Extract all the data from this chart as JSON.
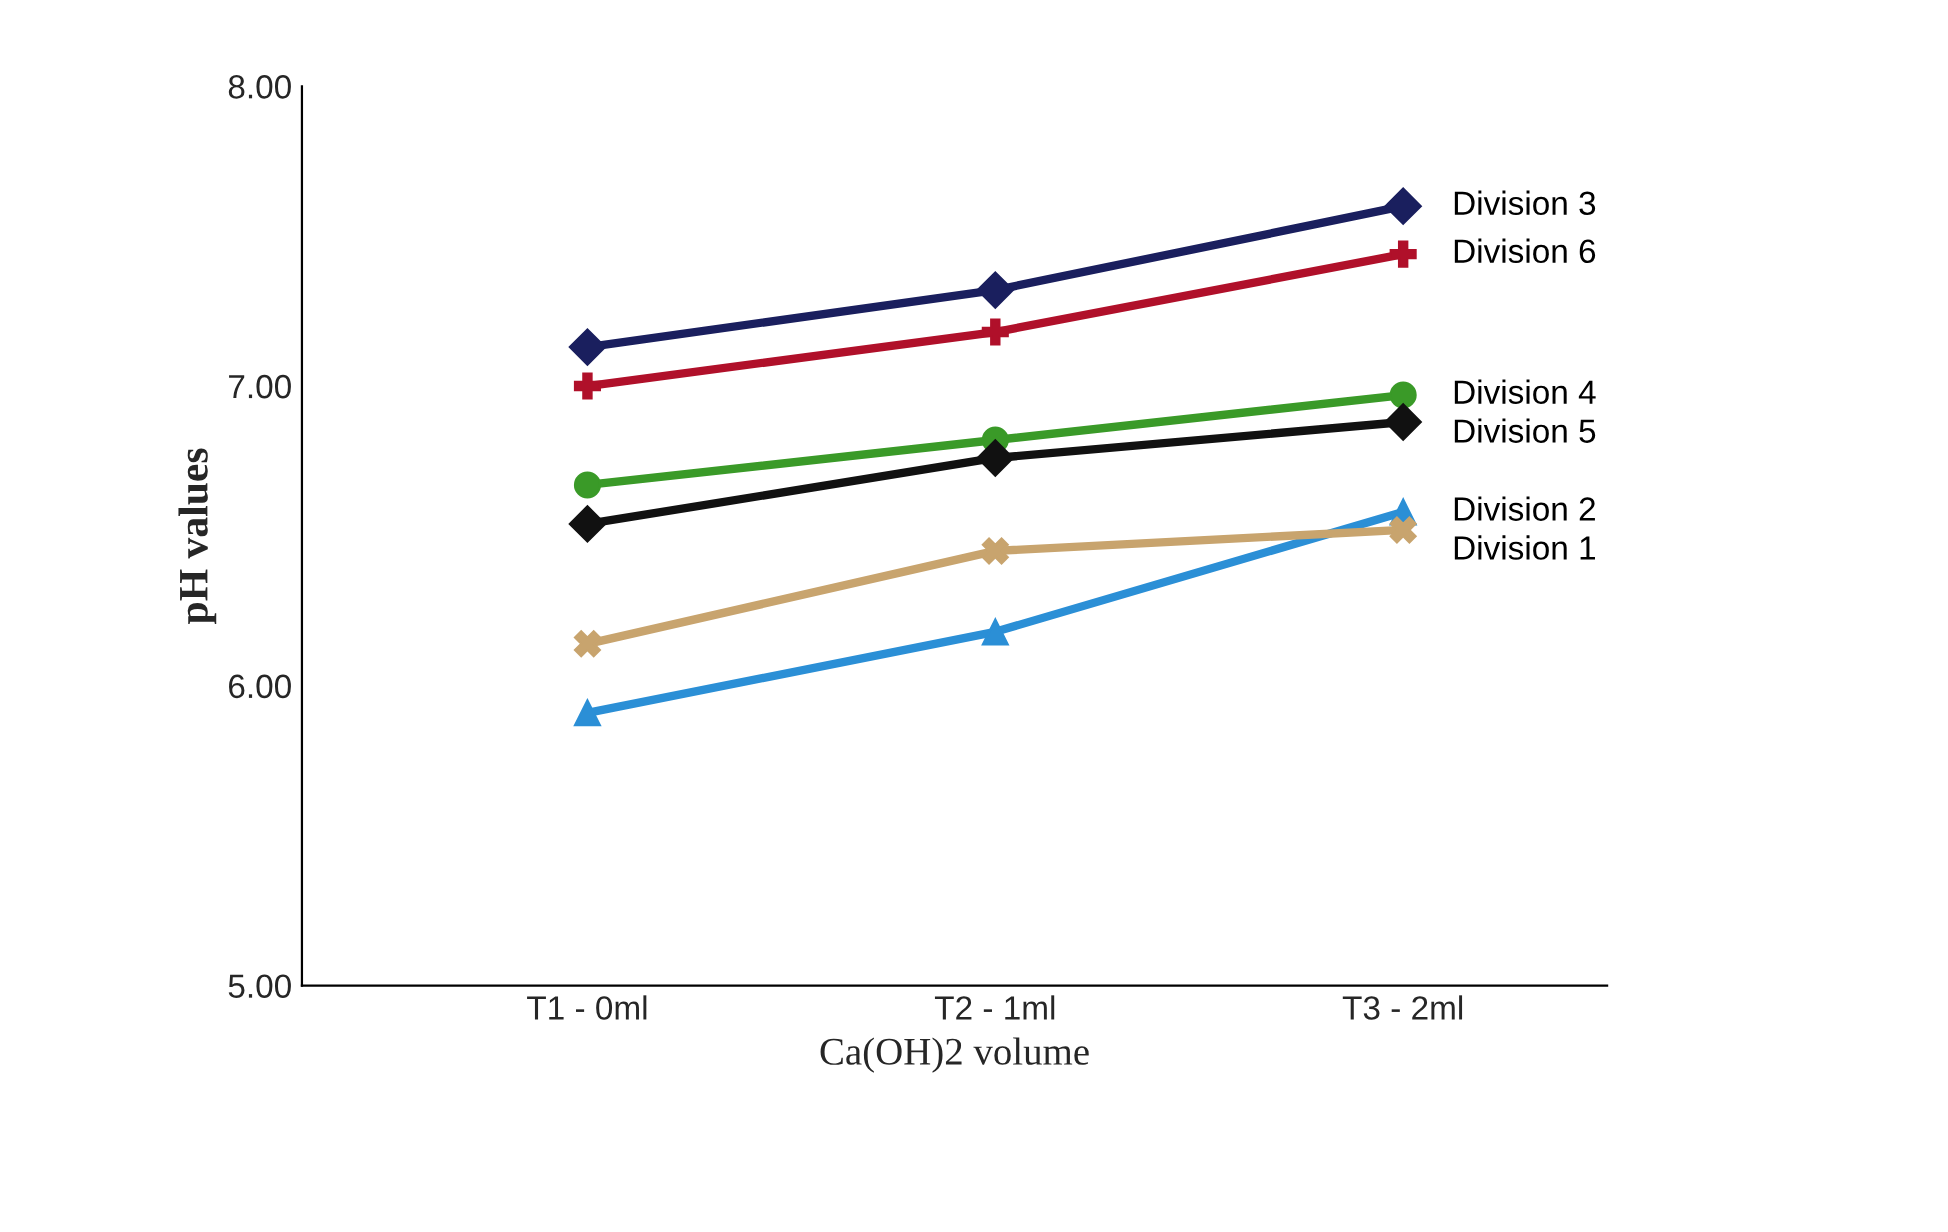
{
  "chart_data": {
    "type": "line",
    "xlabel": "Ca(OH)2 volume",
    "ylabel": "pH values",
    "categories": [
      "T1 - 0ml",
      "T2 - 1ml",
      "T3 - 2ml"
    ],
    "ylim": [
      5,
      8
    ],
    "yticks": [
      {
        "value": 5,
        "label": "5.00"
      },
      {
        "value": 6,
        "label": "6.00"
      },
      {
        "value": 7,
        "label": "7.00"
      },
      {
        "value": 8,
        "label": "8.00"
      }
    ],
    "grid": false,
    "legend": false,
    "series": [
      {
        "name": "Division 3",
        "color": "#1a1f5e",
        "marker": "diamond",
        "values": [
          7.13,
          7.32,
          7.6
        ]
      },
      {
        "name": "Division 6",
        "color": "#b0102a",
        "marker": "cross",
        "values": [
          7.0,
          7.18,
          7.44
        ]
      },
      {
        "name": "Division 4",
        "color": "#3a9a28",
        "marker": "circle",
        "values": [
          6.67,
          6.82,
          6.97
        ]
      },
      {
        "name": "Division 5",
        "color": "#111111",
        "marker": "diamond",
        "values": [
          6.54,
          6.76,
          6.88
        ]
      },
      {
        "name": "Division 2",
        "color": "#2b8fd6",
        "marker": "triangle",
        "values": [
          5.91,
          6.18,
          6.58
        ]
      },
      {
        "name": "Division 1",
        "color": "#c8a46e",
        "marker": "x",
        "values": [
          6.14,
          6.45,
          6.52
        ]
      }
    ]
  }
}
